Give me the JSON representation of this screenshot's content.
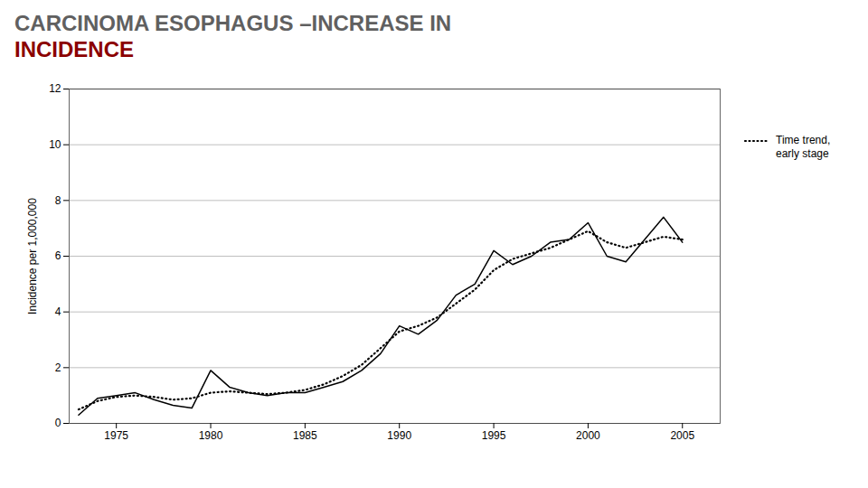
{
  "chart_data": {
    "type": "line",
    "title": "CARCINOMA ESOPHAGUS –INCREASE IN",
    "subtitle": "INCIDENCE",
    "y_label": "Incidence per 1,000,000",
    "x": [
      1973,
      1974,
      1975,
      1976,
      1977,
      1978,
      1979,
      1980,
      1981,
      1982,
      1983,
      1984,
      1985,
      1986,
      1987,
      1988,
      1989,
      1990,
      1991,
      1992,
      1993,
      1994,
      1995,
      1996,
      1997,
      1998,
      1999,
      2000,
      2001,
      2002,
      2003,
      2004,
      2005
    ],
    "series": [
      {
        "color": "#000000",
        "line_style": "solid",
        "values": [
          0.3,
          0.9,
          1.0,
          1.1,
          0.85,
          0.65,
          0.55,
          1.9,
          1.3,
          1.1,
          1.0,
          1.1,
          1.1,
          1.3,
          1.5,
          1.9,
          2.5,
          3.5,
          3.2,
          3.7,
          4.6,
          5.0,
          6.2,
          5.7,
          6.0,
          6.5,
          6.6,
          7.2,
          6.0,
          5.8,
          6.6,
          7.4,
          6.5
        ]
      },
      {
        "name": "Time trend,\nearly stage",
        "color": "#000000",
        "line_style": "dotted",
        "values": [
          0.5,
          0.8,
          0.95,
          1.0,
          0.95,
          0.85,
          0.9,
          1.1,
          1.15,
          1.1,
          1.05,
          1.1,
          1.2,
          1.4,
          1.7,
          2.1,
          2.7,
          3.3,
          3.5,
          3.8,
          4.3,
          4.8,
          5.5,
          5.9,
          6.1,
          6.3,
          6.6,
          6.9,
          6.5,
          6.3,
          6.5,
          6.7,
          6.6
        ]
      }
    ],
    "xlim": [
      1972.5,
      2007
    ],
    "xticks": [
      1975,
      1980,
      1985,
      1990,
      1995,
      2000,
      2005
    ],
    "ylim": [
      0,
      12
    ],
    "yticks": [
      0,
      2,
      4,
      6,
      8,
      10,
      12
    ],
    "grid": true,
    "legend": "right"
  }
}
